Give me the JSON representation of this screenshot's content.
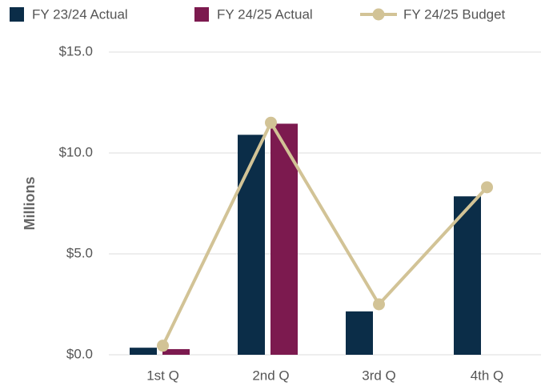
{
  "chart_data": {
    "type": "bar",
    "y_label": "Millions",
    "categories": [
      "1st Q",
      "2nd Q",
      "3rd Q",
      "4th Q"
    ],
    "series": [
      {
        "name": "FY 23/24 Actual",
        "type": "bar",
        "color": "#0b2d48",
        "values": [
          0.35,
          10.9,
          2.15,
          7.85
        ]
      },
      {
        "name": "FY 24/25 Actual",
        "type": "bar",
        "color": "#7c1a4f",
        "values": [
          0.28,
          11.45,
          null,
          null
        ]
      },
      {
        "name": "FY 24/25 Budget",
        "type": "line",
        "color": "#d2c396",
        "values": [
          0.45,
          11.5,
          2.5,
          8.3
        ]
      }
    ],
    "ylim": [
      0,
      15
    ],
    "yticks": [
      {
        "value": 0,
        "label": "$0.0"
      },
      {
        "value": 5,
        "label": "$5.0"
      },
      {
        "value": 10,
        "label": "$10.0"
      },
      {
        "value": 15,
        "label": "$15.0"
      }
    ],
    "grid": true
  }
}
